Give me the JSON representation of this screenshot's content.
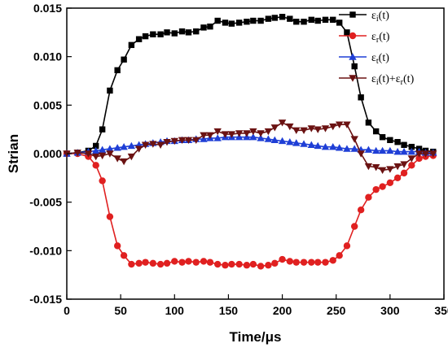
{
  "chart_data": {
    "type": "line",
    "xlabel": "Time/μs",
    "ylabel": "Strian",
    "xlim": [
      0,
      350
    ],
    "ylim": [
      -0.015,
      0.015
    ],
    "xticks": [
      "0",
      "50",
      "100",
      "150",
      "200",
      "250",
      "300",
      "350"
    ],
    "yticks": [
      "-0.015",
      "-0.010",
      "-0.005",
      "0.000",
      "0.005",
      "0.010",
      "0.015"
    ],
    "xtick_values": [
      0,
      50,
      100,
      150,
      200,
      250,
      300,
      350
    ],
    "ytick_values": [
      -0.015,
      -0.01,
      -0.005,
      0.0,
      0.005,
      0.01,
      0.015
    ],
    "legend_position": "top-right",
    "grid": false,
    "series": [
      {
        "key": "i",
        "legend_main": "ε",
        "legend_sub": "i",
        "legend_tail": "(t)",
        "color": "#000000",
        "marker": "square",
        "x": [
          0,
          10,
          20,
          27,
          33,
          40,
          47,
          53,
          60,
          67,
          73,
          80,
          87,
          93,
          100,
          107,
          113,
          120,
          127,
          133,
          140,
          147,
          153,
          160,
          167,
          173,
          180,
          187,
          193,
          200,
          207,
          213,
          220,
          227,
          233,
          240,
          247,
          253,
          260,
          267,
          273,
          280,
          287,
          293,
          300,
          307,
          313,
          320,
          327,
          333,
          340
        ],
        "y": [
          0.0,
          0.0001,
          0.0003,
          0.0008,
          0.0025,
          0.0065,
          0.0086,
          0.0097,
          0.0112,
          0.0118,
          0.0121,
          0.0123,
          0.0123,
          0.0125,
          0.0124,
          0.0126,
          0.0125,
          0.0126,
          0.013,
          0.0131,
          0.0137,
          0.0135,
          0.0134,
          0.0135,
          0.0136,
          0.0137,
          0.0137,
          0.0139,
          0.014,
          0.0141,
          0.0139,
          0.0136,
          0.0136,
          0.0138,
          0.0137,
          0.0138,
          0.0138,
          0.0135,
          0.0125,
          0.009,
          0.0058,
          0.0032,
          0.0023,
          0.0017,
          0.0014,
          0.0012,
          0.0009,
          0.0007,
          0.0005,
          0.0003,
          0.0002
        ]
      },
      {
        "key": "r",
        "legend_main": "ε",
        "legend_sub": "r",
        "legend_tail": "(t)",
        "color": "#e02020",
        "marker": "circle",
        "x": [
          0,
          10,
          20,
          27,
          33,
          40,
          47,
          53,
          60,
          67,
          73,
          80,
          87,
          93,
          100,
          107,
          113,
          120,
          127,
          133,
          140,
          147,
          153,
          160,
          167,
          173,
          180,
          187,
          193,
          200,
          207,
          213,
          220,
          227,
          233,
          240,
          247,
          253,
          260,
          267,
          273,
          280,
          287,
          293,
          300,
          307,
          313,
          320,
          327,
          333,
          340
        ],
        "y": [
          0.0,
          0.0,
          -0.0003,
          -0.0012,
          -0.0028,
          -0.0065,
          -0.0095,
          -0.0105,
          -0.0114,
          -0.0113,
          -0.0112,
          -0.0113,
          -0.0114,
          -0.0113,
          -0.0111,
          -0.0112,
          -0.0111,
          -0.0112,
          -0.0111,
          -0.0112,
          -0.0114,
          -0.0115,
          -0.0114,
          -0.0114,
          -0.0115,
          -0.0114,
          -0.0116,
          -0.0115,
          -0.0113,
          -0.0109,
          -0.0111,
          -0.0112,
          -0.0112,
          -0.0112,
          -0.0112,
          -0.0112,
          -0.011,
          -0.0105,
          -0.0095,
          -0.0075,
          -0.0058,
          -0.0045,
          -0.0037,
          -0.0034,
          -0.003,
          -0.0025,
          -0.002,
          -0.0012,
          -0.0005,
          -0.0003,
          -0.0002
        ]
      },
      {
        "key": "t",
        "legend_main": "ε",
        "legend_sub": "t",
        "legend_tail": "(t)",
        "color": "#1f3fd6",
        "marker": "triangle-up",
        "x": [
          0,
          10,
          20,
          27,
          33,
          40,
          47,
          53,
          60,
          67,
          73,
          80,
          87,
          93,
          100,
          107,
          113,
          120,
          127,
          133,
          140,
          147,
          153,
          160,
          167,
          173,
          180,
          187,
          193,
          200,
          207,
          213,
          220,
          227,
          233,
          240,
          247,
          253,
          260,
          267,
          273,
          280,
          287,
          293,
          300,
          307,
          313,
          320,
          327,
          333,
          340
        ],
        "y": [
          0.0,
          0.0001,
          0.0002,
          0.0003,
          0.0004,
          0.0005,
          0.0006,
          0.0007,
          0.0008,
          0.0009,
          0.001,
          0.0011,
          0.0012,
          0.0013,
          0.0013,
          0.0014,
          0.0014,
          0.0015,
          0.0015,
          0.0016,
          0.0016,
          0.0017,
          0.0017,
          0.0017,
          0.0017,
          0.0017,
          0.0016,
          0.0015,
          0.0014,
          0.0013,
          0.0012,
          0.0011,
          0.001,
          0.0009,
          0.0008,
          0.0007,
          0.0007,
          0.0006,
          0.0005,
          0.0005,
          0.0004,
          0.0004,
          0.0003,
          0.0003,
          0.0003,
          0.0002,
          0.0002,
          0.0002,
          0.0002,
          0.0001,
          0.0001
        ]
      },
      {
        "key": "ir",
        "legend_main": "ε",
        "legend_sub": "i",
        "legend_tail": "(t)+",
        "legend_main2": "ε",
        "legend_sub2": "r",
        "legend_tail2": "(t)",
        "color": "#6b1212",
        "marker": "triangle-down",
        "x": [
          0,
          10,
          20,
          27,
          33,
          40,
          47,
          53,
          60,
          67,
          73,
          80,
          87,
          93,
          100,
          107,
          113,
          120,
          127,
          133,
          140,
          147,
          153,
          160,
          167,
          173,
          180,
          187,
          193,
          200,
          207,
          213,
          220,
          227,
          233,
          240,
          247,
          253,
          260,
          267,
          273,
          280,
          287,
          293,
          300,
          307,
          313,
          320,
          327,
          333,
          340
        ],
        "y": [
          0.0,
          0.0001,
          0.0,
          -0.0003,
          -0.0002,
          0.0,
          -0.0005,
          -0.0008,
          -0.0003,
          0.0005,
          0.0009,
          0.001,
          0.0009,
          0.0012,
          0.0013,
          0.0014,
          0.0014,
          0.0014,
          0.0019,
          0.0019,
          0.0023,
          0.002,
          0.002,
          0.0021,
          0.0021,
          0.0023,
          0.0021,
          0.0023,
          0.0027,
          0.0032,
          0.0028,
          0.0024,
          0.0024,
          0.0026,
          0.0025,
          0.0026,
          0.0028,
          0.003,
          0.003,
          0.0015,
          0.0,
          -0.0013,
          -0.0014,
          -0.0017,
          -0.0016,
          -0.0013,
          -0.0011,
          -0.0005,
          0.0,
          0.0,
          0.0
        ]
      }
    ]
  }
}
